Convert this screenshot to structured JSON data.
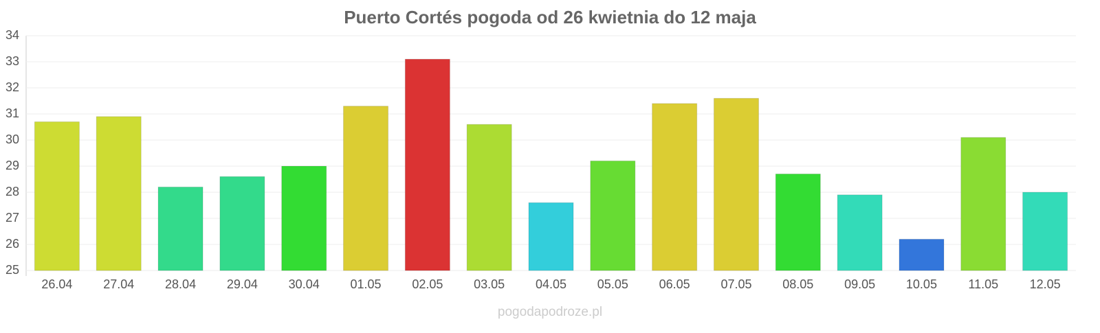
{
  "chart_data": {
    "type": "bar",
    "title": "Puerto Cortés pogoda od 26 kwietnia do 12 maja",
    "categories": [
      "26.04",
      "27.04",
      "28.04",
      "29.04",
      "30.04",
      "01.05",
      "02.05",
      "03.05",
      "04.05",
      "05.05",
      "06.05",
      "07.05",
      "08.05",
      "09.05",
      "10.05",
      "11.05",
      "12.05"
    ],
    "values": [
      30.7,
      30.9,
      28.2,
      28.6,
      29.0,
      31.3,
      33.1,
      30.6,
      27.6,
      29.2,
      31.4,
      31.6,
      28.7,
      27.9,
      26.2,
      30.1,
      28.0
    ],
    "colors": [
      "#cddc33",
      "#cddc33",
      "#33da8b",
      "#33da8b",
      "#33dc33",
      "#dbcd33",
      "#db3333",
      "#acdc33",
      "#33cedb",
      "#67dc33",
      "#dbcd33",
      "#dbcd33",
      "#33dc33",
      "#33dbb8",
      "#3376db",
      "#8adc33",
      "#33dbb8"
    ],
    "ylim": [
      25,
      34
    ],
    "yticks": [
      25,
      26,
      27,
      28,
      29,
      30,
      31,
      32,
      33,
      34
    ],
    "grid": true,
    "watermark": "pogodapodroze.pl"
  }
}
